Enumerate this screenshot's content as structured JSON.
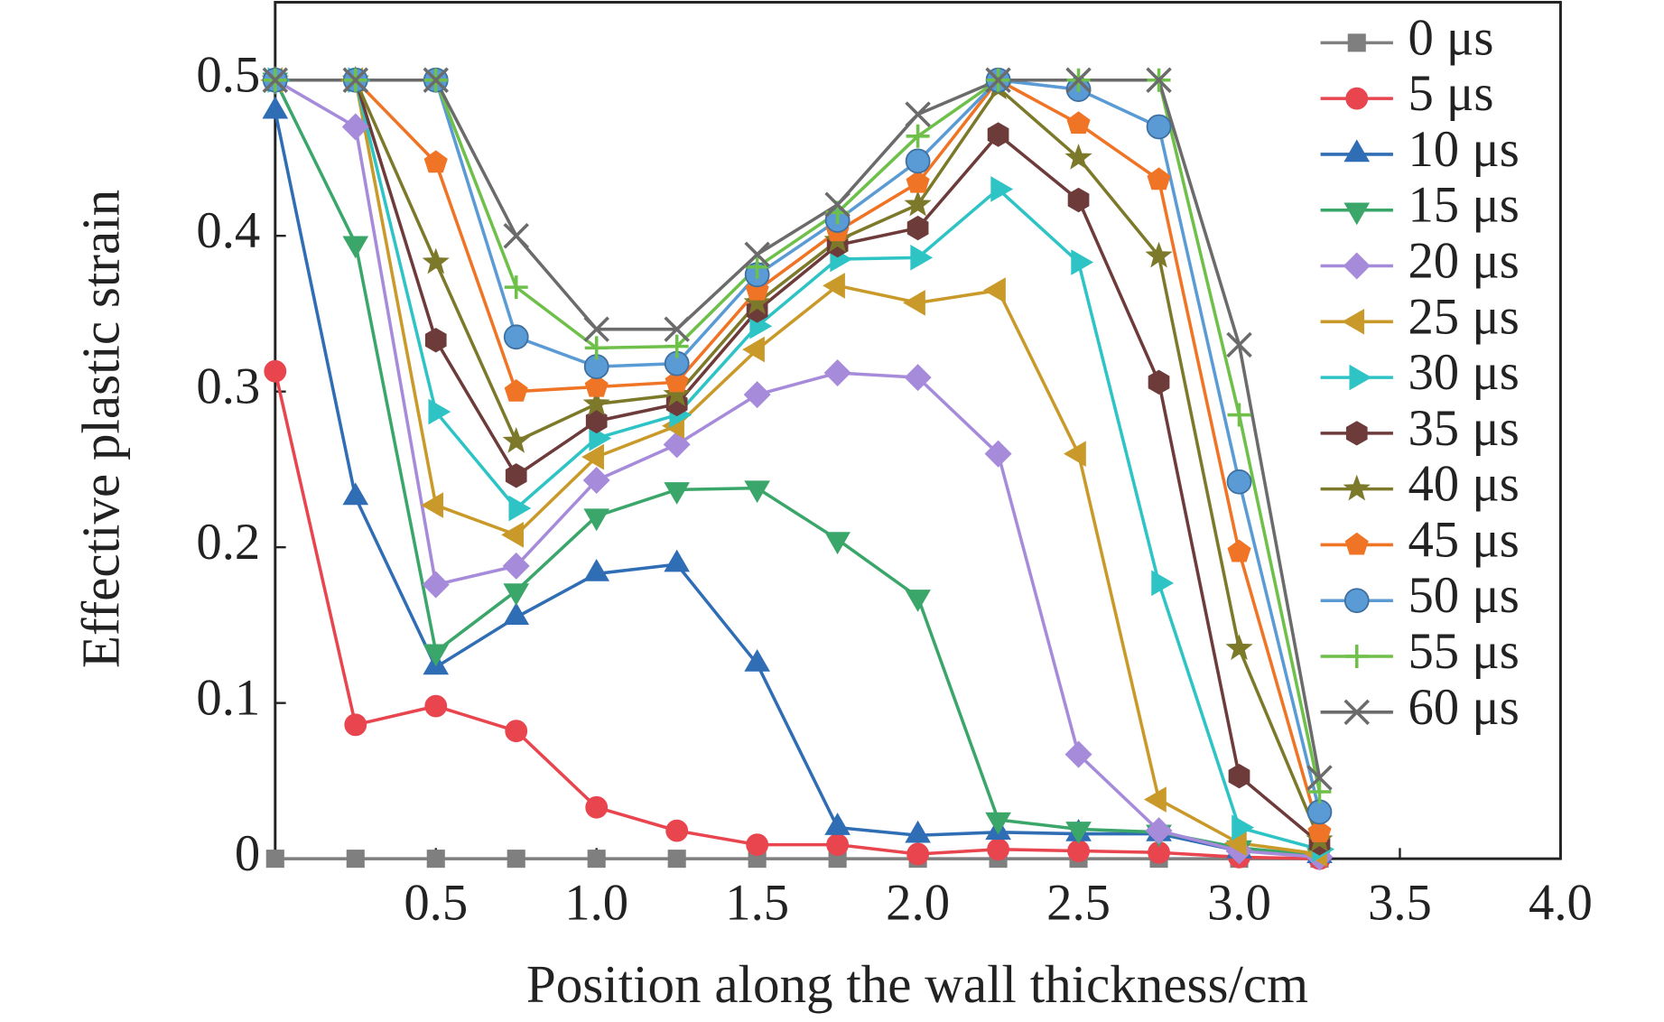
{
  "chart_data": {
    "type": "line",
    "xlabel": "Position along the wall thickness/cm",
    "ylabel": "Effective plastic strain",
    "x": [
      0,
      0.25,
      0.5,
      0.75,
      1.0,
      1.25,
      1.5,
      1.75,
      2.0,
      2.25,
      2.5,
      2.75,
      3.0,
      3.25
    ],
    "xlim": [
      0,
      4
    ],
    "ylim": [
      0,
      0.55
    ],
    "xticks": [
      0.5,
      {
        "value": 1,
        "label": "1.0"
      },
      1.5,
      {
        "value": 2,
        "label": "2.0"
      },
      2.5,
      {
        "value": 3,
        "label": "3.0"
      },
      3.5,
      {
        "value": 4,
        "label": "4.0"
      }
    ],
    "yticks": [
      0,
      0.1,
      0.2,
      0.3,
      0.4,
      0.5
    ],
    "legend": "upper right",
    "series": [
      {
        "name": "0 μs",
        "color": "#7f7f7f",
        "marker": "square",
        "values": [
          0,
          0,
          0,
          0,
          0,
          0,
          0,
          0,
          0,
          0,
          0,
          0,
          0,
          0
        ]
      },
      {
        "name": "5 μs",
        "color": "#e8454f",
        "marker": "circle",
        "values": [
          0.313,
          0.086,
          0.098,
          0.082,
          0.033,
          0.018,
          0.009,
          0.009,
          0.003,
          0.006,
          0.005,
          0.004,
          0.001,
          0
        ]
      },
      {
        "name": "10 μs",
        "color": "#2f6db5",
        "marker": "triangle-up",
        "values": [
          0.48,
          0.232,
          0.123,
          0.155,
          0.183,
          0.189,
          0.125,
          0.02,
          0.015,
          0.017,
          0.016,
          0.016,
          0.005,
          0.002
        ]
      },
      {
        "name": "15 μs",
        "color": "#3aa66a",
        "marker": "triangle-down",
        "values": [
          0.5,
          0.395,
          0.133,
          0.172,
          0.22,
          0.237,
          0.238,
          0.205,
          0.168,
          0.025,
          0.019,
          0.017,
          0.007,
          0.002
        ]
      },
      {
        "name": "20 μs",
        "color": "#a78bdb",
        "marker": "diamond",
        "values": [
          0.5,
          0.47,
          0.176,
          0.188,
          0.243,
          0.266,
          0.298,
          0.312,
          0.309,
          0.26,
          0.067,
          0.018,
          0.005,
          0.001
        ]
      },
      {
        "name": "25 μs",
        "color": "#c99a2a",
        "marker": "triangle-left",
        "values": [
          0.5,
          0.5,
          0.227,
          0.208,
          0.258,
          0.278,
          0.327,
          0.368,
          0.357,
          0.365,
          0.26,
          0.038,
          0.01,
          0.003
        ]
      },
      {
        "name": "30 μs",
        "color": "#2ec4c6",
        "marker": "triangle-right",
        "values": [
          0.5,
          0.5,
          0.287,
          0.225,
          0.27,
          0.285,
          0.342,
          0.385,
          0.386,
          0.43,
          0.383,
          0.177,
          0.02,
          0.006
        ]
      },
      {
        "name": "35 μs",
        "color": "#6e3b3b",
        "marker": "hexagon",
        "values": [
          0.5,
          0.5,
          0.333,
          0.246,
          0.281,
          0.292,
          0.352,
          0.394,
          0.405,
          0.465,
          0.423,
          0.306,
          0.053,
          0.01
        ]
      },
      {
        "name": "40 μs",
        "color": "#7c7a2a",
        "marker": "star",
        "values": [
          0.5,
          0.5,
          0.383,
          0.268,
          0.292,
          0.298,
          0.357,
          0.397,
          0.42,
          0.495,
          0.45,
          0.387,
          0.135,
          0.012
        ]
      },
      {
        "name": "45 μs",
        "color": "#f07426",
        "marker": "pentagon",
        "values": [
          0.5,
          0.5,
          0.447,
          0.3,
          0.303,
          0.306,
          0.365,
          0.403,
          0.434,
          0.5,
          0.472,
          0.436,
          0.197,
          0.017
        ]
      },
      {
        "name": "50 μs",
        "color": "#5b9bd5",
        "marker": "ball",
        "values": [
          0.5,
          0.5,
          0.5,
          0.335,
          0.316,
          0.318,
          0.375,
          0.41,
          0.448,
          0.5,
          0.494,
          0.47,
          0.242,
          0.03
        ]
      },
      {
        "name": "55 μs",
        "color": "#6ec04a",
        "marker": "plus",
        "values": [
          0.5,
          0.5,
          0.5,
          0.367,
          0.328,
          0.329,
          0.38,
          0.415,
          0.464,
          0.5,
          0.5,
          0.5,
          0.285,
          0.043
        ]
      },
      {
        "name": "60 μs",
        "color": "#6b6b6b",
        "marker": "x",
        "values": [
          0.5,
          0.5,
          0.5,
          0.4,
          0.34,
          0.34,
          0.388,
          0.42,
          0.478,
          0.5,
          0.5,
          0.5,
          0.33,
          0.052
        ]
      }
    ]
  }
}
